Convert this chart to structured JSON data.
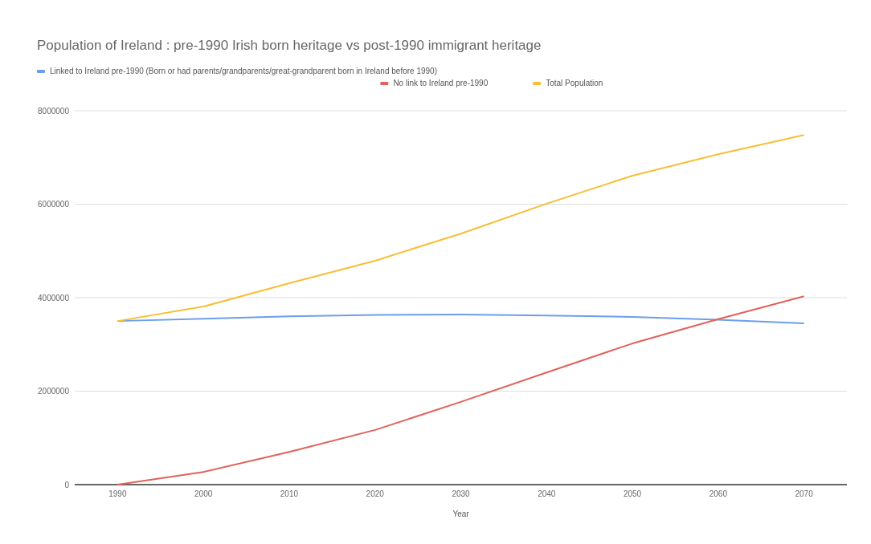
{
  "chart_data": {
    "type": "line",
    "title": "Population of Ireland : pre-1990 Irish born heritage vs post-1990 immigrant heritage",
    "xlabel": "Year",
    "categories": [
      "1990",
      "2000",
      "2010",
      "2020",
      "2030",
      "2040",
      "2050",
      "2060",
      "2070"
    ],
    "series": [
      {
        "name": "Linked to Ireland pre-1990 (Born or had parents/grandparents/great-grandparent born in Ireland before 1990)",
        "color": "#6d9eeb",
        "values": [
          3500000,
          3550000,
          3600000,
          3630000,
          3640000,
          3620000,
          3590000,
          3530000,
          3450000
        ]
      },
      {
        "name": "No link to Ireland pre-1990",
        "color": "#e0625a",
        "values": [
          0,
          270000,
          700000,
          1170000,
          1770000,
          2400000,
          3020000,
          3540000,
          4030000
        ]
      },
      {
        "name": "Total Population",
        "color": "#f6bf36",
        "values": [
          3500000,
          3810000,
          4310000,
          4790000,
          5370000,
          6010000,
          6610000,
          7070000,
          7480000
        ]
      }
    ],
    "ylim": [
      0,
      8000000
    ],
    "yticks": [
      0,
      2000000,
      4000000,
      6000000,
      8000000
    ],
    "grid": "y",
    "legend": "top",
    "marker": "none",
    "line_style": "solid"
  }
}
